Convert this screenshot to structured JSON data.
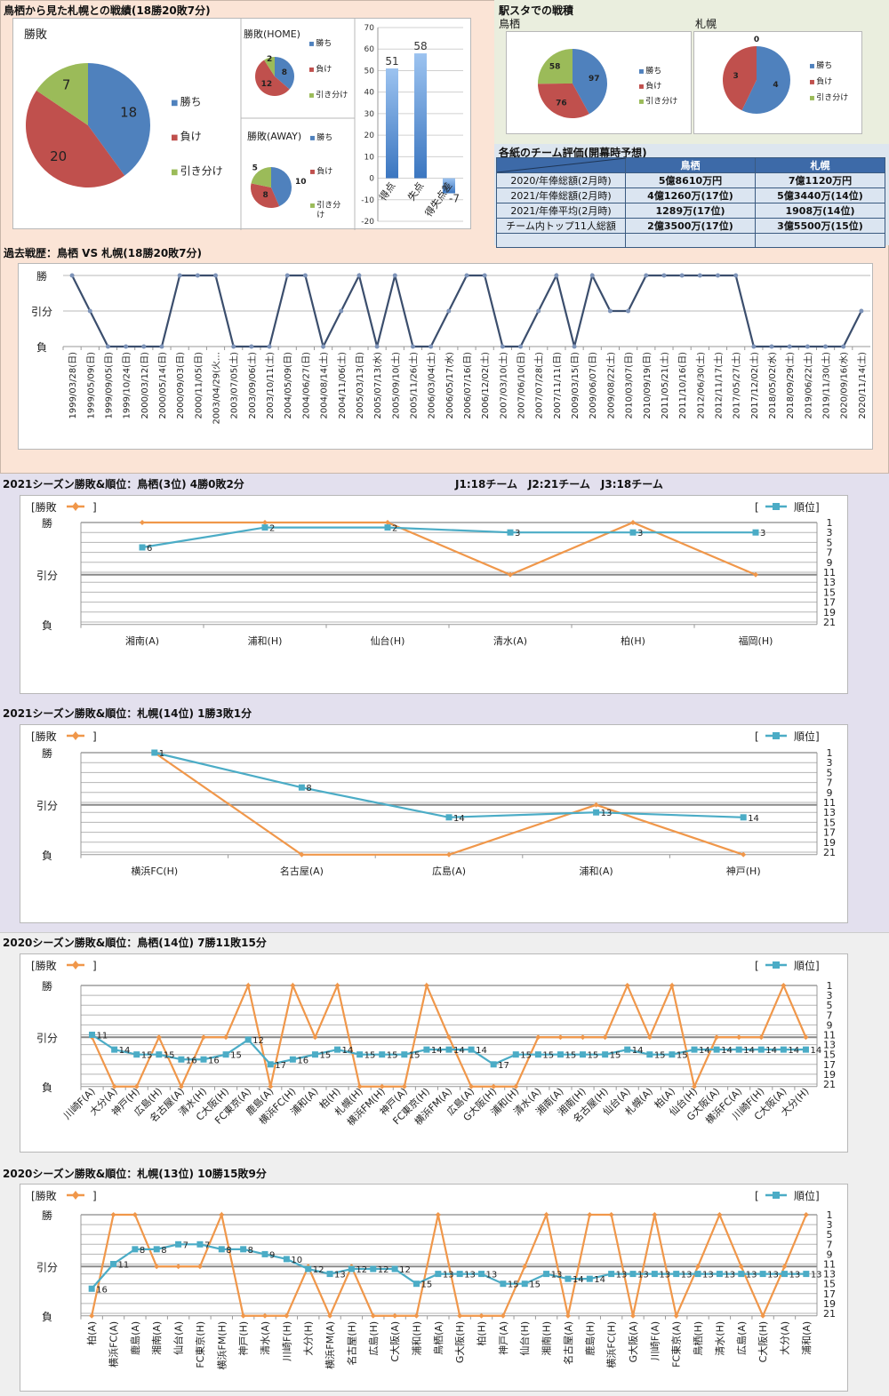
{
  "colors": {
    "win": "#4f81bd",
    "lose": "#c0504d",
    "draw": "#9bbb59",
    "history_line": "#3b4e6d",
    "result_line": "#f0974a",
    "rank_line": "#4bacc6",
    "bar": "#4a84c8"
  },
  "top": {
    "title": "鳥栖から見た札幌との戦績(18勝20敗7分)",
    "legend": [
      "勝ち",
      "負け",
      "引き分け"
    ],
    "legend_away": [
      "勝ち",
      "負け",
      "引き分\nけ"
    ]
  },
  "station": {
    "title": "駅スタでの戦積",
    "tosu_label": "鳥栖",
    "sapporo_label": "札幌"
  },
  "evaluation": {
    "title": "各紙のチーム評価(開幕時予想)",
    "columns": [
      "",
      "鳥栖",
      "札幌"
    ],
    "rows": [
      {
        "label": "2020/年俸総額(2月時)",
        "tosu": "5億8610万円",
        "sapporo": "7億1120万円"
      },
      {
        "label": "2021/年俸総額(2月時)",
        "tosu": "4億1260万(17位)",
        "sapporo": "5億3440万(14位)"
      },
      {
        "label": "2021/年俸平均(2月時)",
        "tosu": "1289万(17位)",
        "sapporo": "1908万(14位)"
      },
      {
        "label": "チーム内トップ11人総額",
        "tosu": "2億3500万(17位)",
        "sapporo": "3億5500万(15位)"
      },
      {
        "label": "",
        "tosu": "",
        "sapporo": ""
      }
    ]
  },
  "history": {
    "title": "過去戦歴：鳥栖 VS 札幌(18勝20敗7分)"
  },
  "season2021": {
    "tosu_title": "2021シーズン勝敗&順位：鳥栖(3位) 4勝0敗2分",
    "league_info": "J1:18チーム　J2:21チーム　J3:18チーム",
    "sapporo_title": "2021シーズン勝敗&順位：札幌(14位) 1勝3敗1分"
  },
  "season2020": {
    "tosu_title": "2020シーズン勝敗&順位：鳥栖(14位) 7勝11敗15分",
    "sapporo_title": "2020シーズン勝敗&順位：札幌(13位) 10勝15敗9分"
  },
  "chart_data": [
    {
      "id": "overall",
      "type": "pie",
      "title": "勝敗",
      "labels": [
        "勝ち",
        "負け",
        "引き分け"
      ],
      "values": [
        18,
        20,
        7
      ]
    },
    {
      "id": "home",
      "type": "pie",
      "title": "勝敗(HOME)",
      "labels": [
        "勝ち",
        "負け",
        "引き分け"
      ],
      "values": [
        8,
        12,
        2
      ]
    },
    {
      "id": "away",
      "type": "pie",
      "title": "勝敗(AWAY)",
      "labels": [
        "勝ち",
        "負け",
        "引き分け"
      ],
      "values": [
        10,
        8,
        5
      ]
    },
    {
      "id": "goals",
      "type": "bar",
      "categories": [
        "得点",
        "失点",
        "得失点差"
      ],
      "values": [
        51,
        58,
        -7
      ],
      "ylim": [
        -20,
        70
      ],
      "yticks": [
        -20,
        -10,
        0,
        10,
        20,
        30,
        40,
        50,
        60,
        70
      ]
    },
    {
      "id": "station_tosu",
      "type": "pie",
      "title": "鳥栖",
      "labels": [
        "勝ち",
        "負け",
        "引き分け"
      ],
      "values": [
        97,
        76,
        58
      ]
    },
    {
      "id": "station_sapporo",
      "type": "pie",
      "title": "札幌",
      "labels": [
        "勝ち",
        "負け",
        "引き分け"
      ],
      "values": [
        4,
        3,
        0
      ]
    },
    {
      "id": "history",
      "type": "line",
      "title": "過去戦歴：鳥栖 VS 札幌(18勝20敗7分)",
      "ytick_labels": [
        "勝",
        "引分",
        "負"
      ],
      "x": [
        "1999/03/28(日)",
        "1999/05/09(日)",
        "1999/09/05(日)",
        "1999/10/24(日)",
        "2000/03/12(日)",
        "2000/05/14(日)",
        "2000/09/03(日)",
        "2000/11/05(日)",
        "2003/04/29(火…",
        "2003/07/05(土)",
        "2003/09/06(土)",
        "2003/10/11(土)",
        "2004/05/09(日)",
        "2004/06/27(日)",
        "2004/08/14(土)",
        "2004/11/06(土)",
        "2005/03/13(日)",
        "2005/07/13(水)",
        "2005/09/10(土)",
        "2005/11/26(土)",
        "2006/03/04(土)",
        "2006/05/17(水)",
        "2006/07/16(日)",
        "2006/12/02(土)",
        "2007/03/10(土)",
        "2007/06/10(日)",
        "2007/07/28(土)",
        "2007/11/11(日)",
        "2009/03/15(日)",
        "2009/06/07(日)",
        "2009/08/22(土)",
        "2010/03/07(日)",
        "2010/09/19(日)",
        "2011/05/21(土)",
        "2011/10/16(日)",
        "2012/06/30(土)",
        "2012/11/17(土)",
        "2017/05/27(土)",
        "2017/12/02(土)",
        "2018/05/02(水)",
        "2018/09/29(土)",
        "2019/06/22(土)",
        "2019/11/30(土)",
        "2020/09/16(水)",
        "2020/11/14(土)"
      ],
      "results": [
        "W",
        "D",
        "L",
        "L",
        "L",
        "L",
        "W",
        "W",
        "W",
        "L",
        "L",
        "L",
        "W",
        "W",
        "L",
        "D",
        "W",
        "L",
        "W",
        "L",
        "L",
        "D",
        "W",
        "W",
        "L",
        "L",
        "D",
        "W",
        "L",
        "W",
        "D",
        "D",
        "W",
        "W",
        "W",
        "W",
        "W",
        "W",
        "L",
        "L",
        "L",
        "L",
        "L",
        "L",
        "D"
      ]
    },
    {
      "id": "tosu2021",
      "type": "line",
      "title": "2021シーズン勝敗&順位：鳥栖(3位) 4勝0敗2分",
      "legend_result": "[勝敗",
      "legend_rank": "順位]",
      "ytick_labels": [
        "勝",
        "引分",
        "負"
      ],
      "y2_ticks": [
        1,
        3,
        5,
        7,
        9,
        11,
        13,
        15,
        17,
        19,
        21
      ],
      "x": [
        "湘南(A)",
        "浦和(H)",
        "仙台(H)",
        "清水(A)",
        "柏(H)",
        "福岡(H)"
      ],
      "results": [
        "W",
        "W",
        "W",
        "D",
        "W",
        "D"
      ],
      "ranks": [
        6,
        2,
        2,
        3,
        3,
        3
      ]
    },
    {
      "id": "sapporo2021",
      "type": "line",
      "title": "2021シーズン勝敗&順位：札幌(14位) 1勝3敗1分",
      "legend_result": "[勝敗",
      "legend_rank": "順位]",
      "ytick_labels": [
        "勝",
        "引分",
        "負"
      ],
      "y2_ticks": [
        1,
        3,
        5,
        7,
        9,
        11,
        13,
        15,
        17,
        19,
        21
      ],
      "x": [
        "横浜FC(H)",
        "名古屋(A)",
        "広島(A)",
        "浦和(A)",
        "神戸(H)"
      ],
      "results": [
        "W",
        "L",
        "L",
        "D",
        "L"
      ],
      "ranks": [
        1,
        8,
        14,
        13,
        14
      ]
    },
    {
      "id": "tosu2020",
      "type": "line",
      "title": "2020シーズン勝敗&順位：鳥栖(14位) 7勝11敗15分",
      "legend_result": "[勝敗",
      "legend_rank": "順位]",
      "ytick_labels": [
        "勝",
        "引分",
        "負"
      ],
      "y2_ticks": [
        1,
        3,
        5,
        7,
        9,
        11,
        13,
        15,
        17,
        19,
        21
      ],
      "x": [
        "川崎F(A)",
        "大分(A)",
        "神戸(H)",
        "広島(H)",
        "名古屋(A)",
        "清水(H)",
        "C大阪(H)",
        "FC東京(A)",
        "鹿島(A)",
        "横浜FC(H)",
        "浦和(A)",
        "柏(H)",
        "札幌(H)",
        "横浜FM(H)",
        "神戸(A)",
        "FC東京(H)",
        "横浜FM(A)",
        "広島(A)",
        "G大阪(H)",
        "浦和(H)",
        "清水(A)",
        "湘南(A)",
        "湘南(H)",
        "名古屋(H)",
        "仙台(A)",
        "札幌(A)",
        "柏(A)",
        "仙台(H)",
        "G大阪(A)",
        "横浜FC(A)",
        "川崎F(H)",
        "C大阪(A)",
        "大分(H)"
      ],
      "results": [
        "D",
        "L",
        "L",
        "D",
        "L",
        "D",
        "D",
        "W",
        "L",
        "W",
        "D",
        "W",
        "L",
        "L",
        "L",
        "W",
        "D",
        "L",
        "L",
        "L",
        "D",
        "D",
        "D",
        "D",
        "W",
        "D",
        "W",
        "L",
        "D",
        "D",
        "D",
        "W",
        "D"
      ],
      "ranks": [
        11,
        14,
        15,
        15,
        16,
        16,
        15,
        12,
        17,
        16,
        15,
        14,
        15,
        15,
        15,
        14,
        14,
        14,
        17,
        15,
        15,
        15,
        15,
        15,
        14,
        15,
        15,
        14,
        14,
        14,
        14,
        14,
        14
      ]
    },
    {
      "id": "sapporo2020",
      "type": "line",
      "title": "2020シーズン勝敗&順位：札幌(13位) 10勝15敗9分",
      "legend_result": "[勝敗",
      "legend_rank": "順位]",
      "ytick_labels": [
        "勝",
        "引分",
        "負"
      ],
      "y2_ticks": [
        1,
        3,
        5,
        7,
        9,
        11,
        13,
        15,
        17,
        19,
        21
      ],
      "x": [
        "柏(A)",
        "横浜FC(A)",
        "鹿島(A)",
        "湘南(A)",
        "仙台(A)",
        "FC東京(H)",
        "横浜FM(H)",
        "神戸(H)",
        "清水(A)",
        "川崎F(H)",
        "大分(H)",
        "横浜FM(A)",
        "名古屋(H)",
        "広島(H)",
        "C大阪(A)",
        "浦和(H)",
        "鳥栖(A)",
        "G大阪(H)",
        "柏(H)",
        "神戸(A)",
        "仙台(H)",
        "湘南(H)",
        "名古屋(A)",
        "鹿島(H)",
        "横浜FC(H)",
        "G大阪(A)",
        "川崎F(A)",
        "FC東京(A)",
        "鳥栖(H)",
        "清水(H)",
        "広島(A)",
        "C大阪(H)",
        "大分(A)",
        "浦和(A)"
      ],
      "results": [
        "L",
        "W",
        "W",
        "D",
        "D",
        "D",
        "W",
        "L",
        "L",
        "L",
        "D",
        "L",
        "D",
        "L",
        "L",
        "L",
        "W",
        "L",
        "L",
        "L",
        "D",
        "W",
        "L",
        "W",
        "W",
        "L",
        "W",
        "L",
        "D",
        "W",
        "D",
        "L",
        "D",
        "W"
      ],
      "ranks": [
        16,
        11,
        8,
        8,
        7,
        7,
        8,
        8,
        9,
        10,
        12,
        13,
        12,
        12,
        12,
        15,
        13,
        13,
        13,
        15,
        15,
        13,
        14,
        14,
        13,
        13,
        13,
        13,
        13,
        13,
        13,
        13,
        13,
        13
      ]
    }
  ]
}
